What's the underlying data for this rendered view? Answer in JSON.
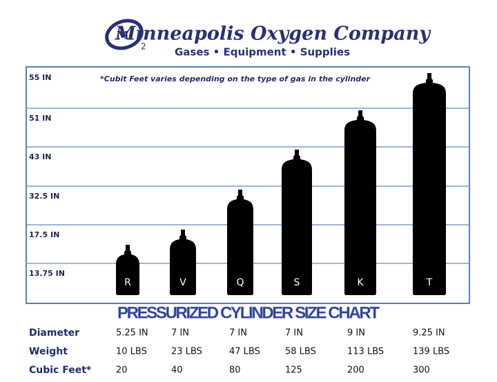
{
  "header": {
    "logo": {
      "letter": "M",
      "subscript": "2"
    },
    "title": "Minneapolis Oxygen Company",
    "subtitle": "Gases • Equipment • Supplies"
  },
  "chart": {
    "note": "*Cubit Feet varies depending on the type of gas in the cylinder",
    "levels": [
      "55 IN",
      "51 IN",
      "43 IN",
      "32.5 IN",
      "17.5 IN",
      "13.75 IN"
    ],
    "cylinders": [
      "R",
      "V",
      "Q",
      "S",
      "K",
      "T"
    ],
    "title": "PRESSURIZED CYLINDER SIZE CHART"
  },
  "table": {
    "rows": [
      {
        "label": "Diameter",
        "values": [
          "5.25 IN",
          "7 IN",
          "7 IN",
          "7 IN",
          "9 IN",
          "9.25 IN"
        ]
      },
      {
        "label": "Weight",
        "values": [
          "10 LBS",
          "23 LBS",
          "47 LBS",
          "58 LBS",
          "113 LBS",
          "139 LBS"
        ]
      },
      {
        "label": "Cubic Feet*",
        "values": [
          "20",
          "40",
          "80",
          "125",
          "200",
          "300"
        ]
      }
    ]
  }
}
